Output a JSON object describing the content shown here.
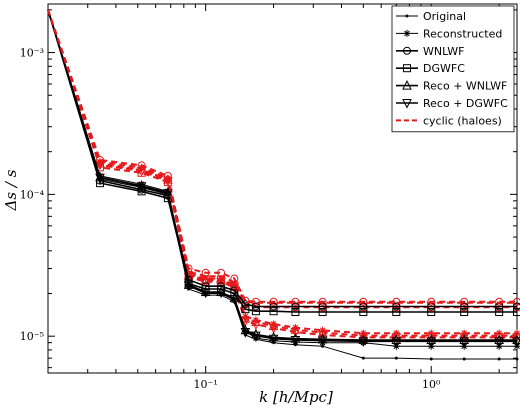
{
  "chart_data": {
    "type": "line",
    "xlabel": "k [h/Mpc]",
    "ylabel": "Δs / s",
    "xscale": "log",
    "yscale": "log",
    "xlim": [
      0.02,
      2.4
    ],
    "ylim": [
      5.5e-06,
      0.0022
    ],
    "grid": false,
    "legend_position": "top-right",
    "xticks": [
      {
        "value": 0.1,
        "label": "10⁻¹"
      },
      {
        "value": 1,
        "label": "10⁰"
      }
    ],
    "yticks": [
      {
        "value": 1e-05,
        "label": "10⁻⁵"
      },
      {
        "value": 0.0001,
        "label": "10⁻⁴"
      },
      {
        "value": 0.001,
        "label": "10⁻³"
      }
    ],
    "x": [
      0.02,
      0.034,
      0.052,
      0.068,
      0.084,
      0.1,
      0.117,
      0.134,
      0.15,
      0.167,
      0.2,
      0.25,
      0.33,
      0.5,
      0.7,
      1.0,
      1.4,
      2.0,
      2.4
    ],
    "series": [
      {
        "name": "Original",
        "color": "#000000",
        "dash": "",
        "marker": "dot",
        "width": 1,
        "values": [
          0.002,
          0.000128,
          0.000112,
          0.0001,
          2.15e-05,
          1.95e-05,
          1.95e-05,
          1.75e-05,
          1.02e-05,
          9.5e-06,
          9e-06,
          8.7e-06,
          8.5e-06,
          7e-06,
          7e-06,
          6.9e-06,
          6.9e-06,
          6.9e-06,
          6.9e-06
        ]
      },
      {
        "name": "Reconstructed",
        "color": "#000000",
        "dash": "",
        "marker": "star",
        "width": 1,
        "values": [
          0.002,
          0.000135,
          0.000118,
          0.000105,
          2.25e-05,
          2e-05,
          2e-05,
          1.8e-05,
          1.08e-05,
          9.7e-06,
          9.3e-06,
          9.1e-06,
          9e-06,
          9e-06,
          8.5e-06,
          8.5e-06,
          8.5e-06,
          8.5e-06,
          8.5e-06
        ]
      },
      {
        "name": "WNLWF",
        "color": "#000000",
        "dash": "",
        "marker": "circle",
        "width": 1.6,
        "values": [
          0.002,
          0.000125,
          0.000108,
          9.8e-05,
          2.5e-05,
          2.25e-05,
          2.25e-05,
          2.1e-05,
          1.68e-05,
          1.62e-05,
          1.62e-05,
          1.62e-05,
          1.62e-05,
          1.62e-05,
          1.62e-05,
          1.62e-05,
          1.62e-05,
          1.62e-05,
          1.62e-05
        ]
      },
      {
        "name": "DGWFC",
        "color": "#000000",
        "dash": "",
        "marker": "square",
        "width": 1.6,
        "values": [
          0.002,
          0.00012,
          0.000105,
          9.4e-05,
          2.35e-05,
          2.15e-05,
          2.15e-05,
          2e-05,
          1.55e-05,
          1.5e-05,
          1.5e-05,
          1.48e-05,
          1.48e-05,
          1.48e-05,
          1.48e-05,
          1.48e-05,
          1.48e-05,
          1.48e-05,
          1.48e-05
        ]
      },
      {
        "name": "Reco + WNLWF",
        "color": "#000000",
        "dash": "",
        "marker": "triangle-up",
        "width": 1.6,
        "values": [
          0.002,
          0.000132,
          0.000115,
          0.000103,
          2.3e-05,
          2.05e-05,
          2.05e-05,
          1.85e-05,
          1.1e-05,
          1.03e-05,
          9.8e-06,
          9.6e-06,
          9.5e-06,
          9.4e-06,
          9.4e-06,
          9.4e-06,
          9.4e-06,
          9.4e-06,
          9.4e-06
        ]
      },
      {
        "name": "Reco + DGWFC",
        "color": "#000000",
        "dash": "",
        "marker": "triangle-down",
        "width": 1.6,
        "values": [
          0.002,
          0.000131,
          0.000114,
          0.000102,
          2.28e-05,
          2.03e-05,
          2.03e-05,
          1.83e-05,
          1.07e-05,
          1.01e-05,
          9.6e-06,
          9.4e-06,
          9.3e-06,
          9.2e-06,
          9.2e-06,
          9.2e-06,
          9.2e-06,
          9.2e-06,
          9.2e-06
        ]
      },
      {
        "name": "cyclic (haloes)",
        "color": "#e41a1c",
        "dash": "6 4",
        "marker": "",
        "width": 2,
        "values": [
          0.002,
          0.00016,
          0.000148,
          0.000128,
          2.85e-05,
          2.65e-05,
          2.65e-05,
          2.4e-05,
          1.75e-05,
          1.72e-05,
          1.72e-05,
          1.72e-05,
          1.72e-05,
          1.72e-05,
          1.72e-05,
          1.72e-05,
          1.72e-05,
          1.72e-05,
          1.72e-05
        ]
      }
    ],
    "extra_series": [
      {
        "color": "#e41a1c",
        "dash": "6 4",
        "marker": "circle",
        "values": [
          0.002,
          0.000175,
          0.00016,
          0.000135,
          3e-05,
          2.8e-05,
          2.8e-05,
          2.55e-05,
          1.78e-05,
          1.75e-05,
          1.75e-05,
          1.75e-05,
          1.75e-05,
          1.75e-05,
          1.75e-05,
          1.75e-05,
          1.75e-05,
          1.75e-05,
          1.75e-05
        ]
      },
      {
        "color": "#e41a1c",
        "dash": "6 4",
        "marker": "square",
        "values": [
          0.002,
          0.000155,
          0.000142,
          0.000122,
          2.7e-05,
          2.5e-05,
          2.5e-05,
          2.28e-05,
          1.63e-05,
          1.6e-05,
          1.6e-05,
          1.6e-05,
          1.6e-05,
          1.6e-05,
          1.6e-05,
          1.6e-05,
          1.6e-05,
          1.6e-05,
          1.6e-05
        ]
      },
      {
        "color": "#e41a1c",
        "dash": "6 4",
        "marker": "star",
        "values": [
          0.002,
          0.00017,
          0.000155,
          0.00013,
          2.75e-05,
          2.55e-05,
          2.55e-05,
          2.3e-05,
          1.38e-05,
          1.3e-05,
          1.22e-05,
          1.15e-05,
          1.1e-05,
          1.05e-05,
          1.05e-05,
          1.05e-05,
          1.05e-05,
          1.05e-05,
          1.05e-05
        ]
      },
      {
        "color": "#e41a1c",
        "dash": "6 4",
        "marker": "triangle-up",
        "values": [
          0.002,
          0.000165,
          0.00015,
          0.000127,
          2.68e-05,
          2.48e-05,
          2.48e-05,
          2.25e-05,
          1.33e-05,
          1.26e-05,
          1.18e-05,
          1.11e-05,
          1.06e-05,
          1.01e-05,
          1.01e-05,
          1.01e-05,
          1.01e-05,
          1.01e-05,
          1.01e-05
        ]
      },
      {
        "color": "#e41a1c",
        "dash": "6 4",
        "marker": "triangle-down",
        "values": [
          0.002,
          0.000162,
          0.000146,
          0.000124,
          2.62e-05,
          2.42e-05,
          2.42e-05,
          2.2e-05,
          1.28e-05,
          1.21e-05,
          1.14e-05,
          1.07e-05,
          1.02e-05,
          9.8e-06,
          9.8e-06,
          9.8e-06,
          9.8e-06,
          9.8e-06,
          9.8e-06
        ]
      }
    ]
  }
}
